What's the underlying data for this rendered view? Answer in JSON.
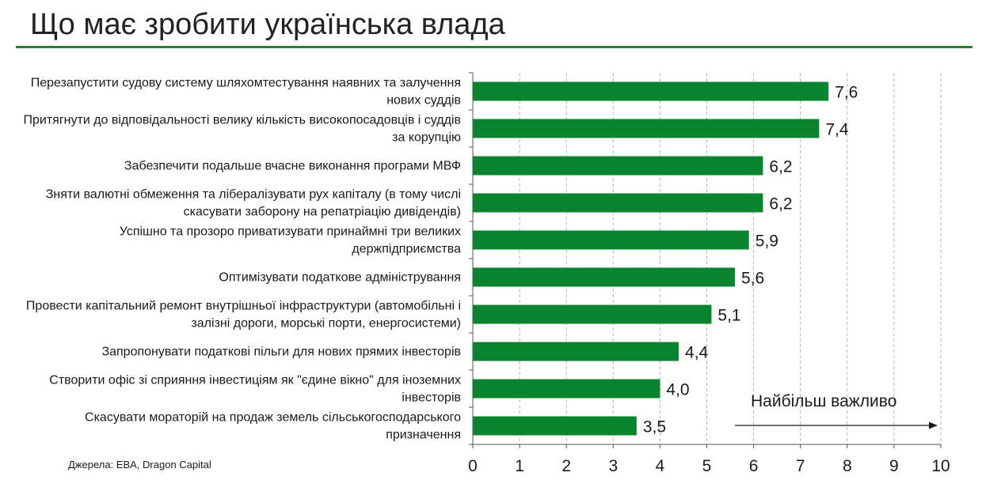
{
  "title": "Що має зробити українська влада",
  "source": "Джерела: EBA, Dragon Capital",
  "colors": {
    "bar": "#0b8430",
    "rule": "#2e7d32",
    "grid": "#b5b5b5",
    "axis": "#555555"
  },
  "chart_data": {
    "type": "bar",
    "orientation": "horizontal",
    "categories": [
      [
        "Перезапустити судову систему шляхомтестування наявних та залучення",
        "нових суддів"
      ],
      [
        "Притягнути до відповідальності велику кількість високопосадовців і суддів",
        "за корупцію"
      ],
      [
        "Забезпечити подальше вчасне виконання програми МВФ"
      ],
      [
        "Зняти валютні обмеження та лібералізувати рух капіталу (в тому числі",
        "скасувати заборону на репатріацію дивідендів)"
      ],
      [
        "Успішно та прозоро приватизувати принаймні три великих",
        "держпідприємства"
      ],
      [
        "Оптимізувати податкове адміністрування"
      ],
      [
        "Провести капітальний ремонт внутрішньої інфраструктури (автомобільні і",
        "залізні дороги, морські порти, енергосистеми)"
      ],
      [
        "Запропонувати податкові пільги для нових прямих інвесторів"
      ],
      [
        "Створити офіс зі сприяння інвестиціям як \"єдине вікно\" для іноземних",
        "інвесторів"
      ],
      [
        "Скасувати мораторій на продаж земель сільськогосподарського",
        "призначення"
      ]
    ],
    "values": [
      7.6,
      7.4,
      6.2,
      6.2,
      5.9,
      5.6,
      5.1,
      4.4,
      4.0,
      3.5
    ],
    "value_labels": [
      "7,6",
      "7,4",
      "6,2",
      "6,2",
      "5,9",
      "5,6",
      "5,1",
      "4,4",
      "4,0",
      "3,5"
    ],
    "xlim": [
      0,
      10
    ],
    "xticks": [
      0,
      1,
      2,
      3,
      4,
      5,
      6,
      7,
      8,
      9,
      10
    ],
    "grid": "vertical dashed",
    "annotation": "Найбільш важливо"
  }
}
